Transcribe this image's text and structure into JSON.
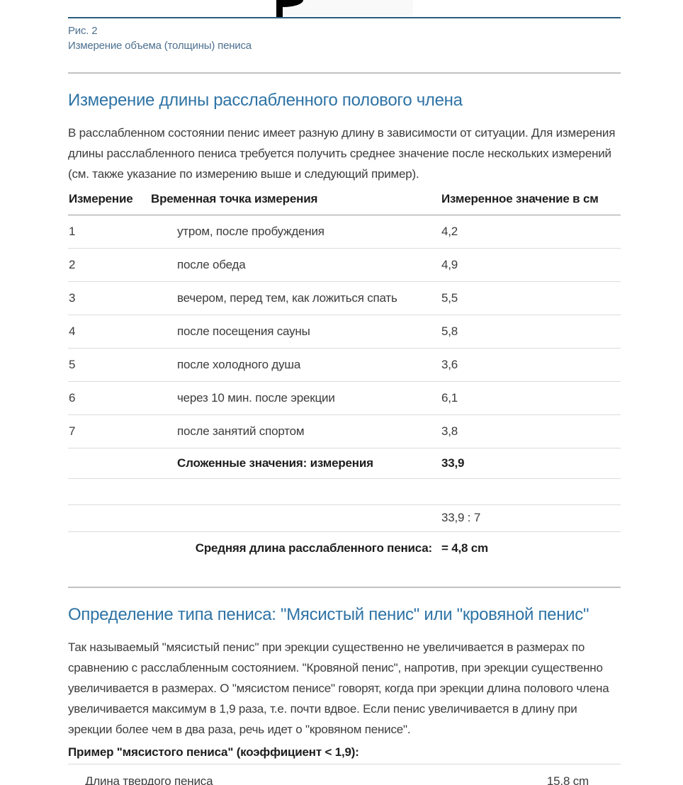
{
  "figure": {
    "caption_label": "Рис. 2",
    "caption_text": "Измерение объема (толщины) пениса"
  },
  "section1": {
    "heading": "Измерение длины расслабленного полового члена",
    "paragraph": "В расслабленном состоянии пенис имеет разную длину в зависимости от ситуации. Для измерения длины расслабленного пениса требуется получить среднее значение после нескольких измерений (см. также указание по измерению выше и следующий пример).",
    "table": {
      "col_measurement": "Измерение",
      "col_timepoint": "Временная точка измерения",
      "col_value": "Измеренное значение в см",
      "rows": [
        {
          "n": "1",
          "t": "утром, после пробуждения",
          "v": "4,2"
        },
        {
          "n": "2",
          "t": "после обеда",
          "v": "4,9"
        },
        {
          "n": "3",
          "t": "вечером, перед тем, как ложиться спать",
          "v": "5,5"
        },
        {
          "n": "4",
          "t": "после посещения сауны",
          "v": "5,8"
        },
        {
          "n": "5",
          "t": "после холодного душа",
          "v": "3,6"
        },
        {
          "n": "6",
          "t": "через 10 мин. после эрекции",
          "v": "6,1"
        },
        {
          "n": "7",
          "t": "после занятий спортом",
          "v": "3,8"
        }
      ],
      "sum_label": "Сложенные значения: измерения",
      "sum_value": "33,9",
      "division_value": "33,9 : 7",
      "average_label": "Средняя длина расслабленного пениса:",
      "average_value": "= 4,8 cm"
    }
  },
  "section2": {
    "heading": "Определение типа пениса: \"Мясистый пенис\" или \"кровяной пенис\"",
    "paragraph": "Так называемый \"мясистый пенис\" при эрекции существенно не увеличивается в размерах по сравнению с расслабленным состоянием. \"Кровяной пенис\", напротив, при эрекции существенно увеличивается в размерах. О \"мясистом пенисе\" говорят, когда при эрекции длина полового члена увеличивается максимум в 1,9 раза, т.е. почти вдвое. Если пенис увеличивается в длину при эрекции более чем в два раза, речь идет о \"кровяном пенисе\".",
    "example_label": "Пример \"мясистого пениса\" (коэффициент < 1,9):",
    "example_rows": [
      {
        "label": "Длина твердого пениса",
        "value": "15,8 cm"
      }
    ]
  },
  "colors": {
    "heading_blue": "#2e73a5",
    "caption_blue_gray": "#4e7190",
    "top_rule_blue": "#2b5c7d",
    "body_text": "#3c3c3c",
    "strong_text": "#1e1e1e",
    "section_divider_gray": "#c2c2c2",
    "header_border_gray": "#9a9a9a",
    "row_border_gray": "#dcdcdc"
  }
}
